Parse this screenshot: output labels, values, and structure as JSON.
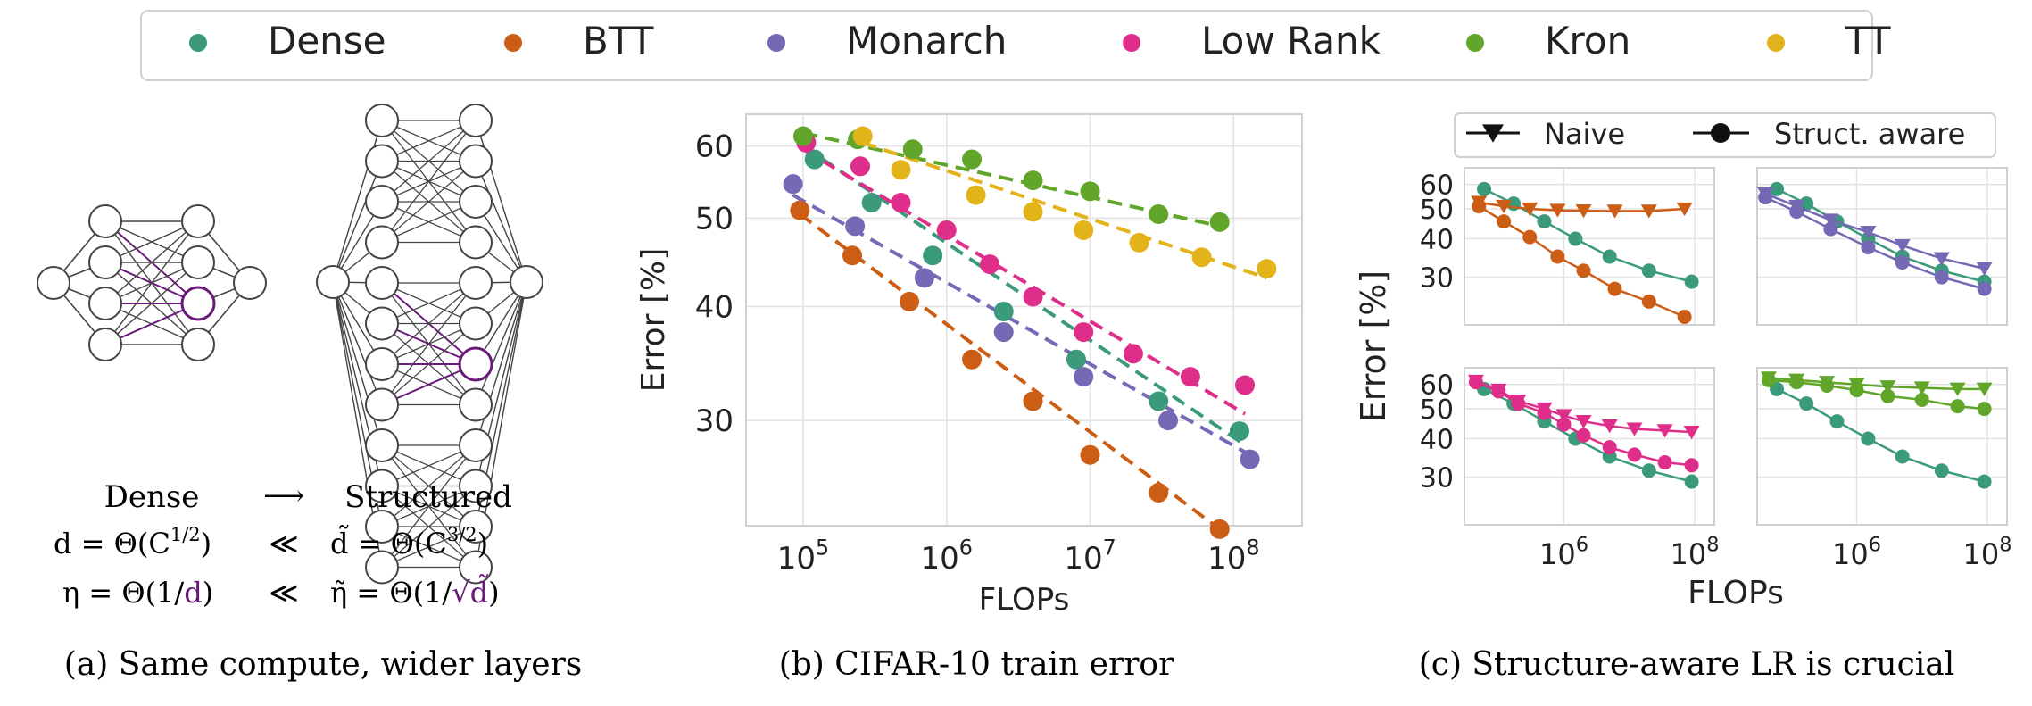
{
  "legend_top": {
    "items": [
      {
        "label": "Dense",
        "color": "#3a9a7b"
      },
      {
        "label": "BTT",
        "color": "#cc5d15"
      },
      {
        "label": "Monarch",
        "color": "#7569b6"
      },
      {
        "label": "Low Rank",
        "color": "#df2e8a"
      },
      {
        "label": "Kron",
        "color": "#61a62b"
      },
      {
        "label": "TT",
        "color": "#e3b31a"
      }
    ]
  },
  "panel_a": {
    "dense_label": "Dense",
    "arrow": "⟶",
    "structured_label": "Structured",
    "eq1_left": "d = Θ(C",
    "eq1_left_sup": "1/2",
    "eq1_left_end": ")",
    "eq1_mid": "≪",
    "eq1_right": "d̃ = Θ(C",
    "eq1_right_sup": "3/2",
    "eq1_right_end": ")",
    "eq2_left_a": "η = Θ(1/",
    "eq2_left_d": "d",
    "eq2_left_end": ")",
    "eq2_mid": "≪",
    "eq2_right_a": "η̃ = Θ(1/",
    "eq2_right_root": "√d̃",
    "eq2_right_end": ")",
    "caption": "(a) Same compute, wider layers",
    "highlight_color": "#6a1b7a"
  },
  "panel_b": {
    "caption": "(b) CIFAR-10 train error"
  },
  "panel_c": {
    "caption": "(c) Structure-aware LR is crucial",
    "legend": [
      {
        "label": "Naive",
        "marker": "triangle-down"
      },
      {
        "label": "Struct. aware",
        "marker": "circle"
      }
    ]
  },
  "chart_data": [
    {
      "type": "scatter",
      "xlabel": "FLOPs",
      "ylabel": "Error [%]",
      "xscale": "log",
      "yscale": "log",
      "xlim": [
        40000,
        300000000
      ],
      "ylim": [
        23,
        65
      ],
      "xticks": [
        {
          "v": 100000,
          "b": "10",
          "e": "5"
        },
        {
          "v": 1000000,
          "b": "10",
          "e": "6"
        },
        {
          "v": 10000000,
          "b": "10",
          "e": "7"
        },
        {
          "v": 100000000,
          "b": "10",
          "e": "8"
        }
      ],
      "yticks": [
        30,
        40,
        50,
        60
      ],
      "grid": true,
      "fit_lines": "dashed",
      "series": [
        {
          "name": "Dense",
          "color": "#3a9a7b",
          "points": [
            [
              120000,
              58
            ],
            [
              300000,
              52
            ],
            [
              800000,
              45.5
            ],
            [
              2500000,
              39.5
            ],
            [
              8000000,
              35
            ],
            [
              30000000,
              31.5
            ],
            [
              110000000,
              29.2
            ]
          ],
          "fit": [
            [
              100000,
              60
            ],
            [
              120000000,
              28.2
            ]
          ]
        },
        {
          "name": "BTT",
          "color": "#cc5d15",
          "points": [
            [
              95000,
              51
            ],
            [
              220000,
              45.5
            ],
            [
              550000,
              40.5
            ],
            [
              1500000,
              35
            ],
            [
              4000000,
              31.5
            ],
            [
              10000000,
              27.5
            ],
            [
              30000000,
              25
            ],
            [
              80000000,
              22.8
            ]
          ],
          "fit": [
            [
              95000,
              50.5
            ],
            [
              80000000,
              22.8
            ]
          ]
        },
        {
          "name": "Monarch",
          "color": "#7569b6",
          "points": [
            [
              85000,
              54.5
            ],
            [
              230000,
              49
            ],
            [
              700000,
              43
            ],
            [
              2500000,
              37.5
            ],
            [
              9000000,
              33.5
            ],
            [
              35000000,
              30
            ],
            [
              130000000,
              27.2
            ]
          ],
          "fit": [
            [
              85000,
              53
            ],
            [
              130000000,
              27.5
            ]
          ]
        },
        {
          "name": "Low Rank",
          "color": "#df2e8a",
          "points": [
            [
              105000,
              60.5
            ],
            [
              250000,
              57
            ],
            [
              480000,
              52
            ],
            [
              1000000,
              48.5
            ],
            [
              2000000,
              44.5
            ],
            [
              4000000,
              41
            ],
            [
              9000000,
              37.5
            ],
            [
              20000000,
              35.5
            ],
            [
              50000000,
              33.5
            ],
            [
              120000000,
              32.8
            ]
          ],
          "fit": [
            [
              100000,
              59.5
            ],
            [
              120000000,
              30.5
            ]
          ]
        },
        {
          "name": "Kron",
          "color": "#61a62b",
          "points": [
            [
              100000,
              61.5
            ],
            [
              240000,
              61
            ],
            [
              580000,
              59.5
            ],
            [
              1500000,
              58
            ],
            [
              4000000,
              55
            ],
            [
              10000000,
              53.5
            ],
            [
              30000000,
              50.5
            ],
            [
              80000000,
              49.5
            ]
          ],
          "fit": [
            [
              100000,
              62
            ],
            [
              80000000,
              49
            ]
          ]
        },
        {
          "name": "TT",
          "color": "#e3b31a",
          "points": [
            [
              260000,
              61.5
            ],
            [
              480000,
              56.5
            ],
            [
              1600000,
              53
            ],
            [
              4000000,
              50.8
            ],
            [
              9000000,
              48.5
            ],
            [
              22000000,
              47
            ],
            [
              60000000,
              45.3
            ],
            [
              170000000,
              44
            ]
          ],
          "fit": [
            [
              260000,
              60.5
            ],
            [
              170000000,
              43
            ]
          ]
        }
      ]
    },
    {
      "type": "line",
      "panel": "top-left",
      "xscale": "log",
      "yscale": "log",
      "xlim": [
        30000,
        200000000
      ],
      "ylim": [
        21,
        68
      ],
      "series": [
        {
          "name": "Dense",
          "marker": "circle",
          "color": "#3a9a7b",
          "points": [
            [
              60000,
              58
            ],
            [
              170000,
              52
            ],
            [
              500000,
              45.5
            ],
            [
              1500000,
              40
            ],
            [
              5000000,
              35
            ],
            [
              20000000,
              31.5
            ],
            [
              90000000,
              29
            ]
          ]
        },
        {
          "name": "BTT",
          "marker": "circle",
          "color": "#cc5d15",
          "points": [
            [
              50000,
              51
            ],
            [
              120000,
              45.5
            ],
            [
              300000,
              40.5
            ],
            [
              800000,
              35
            ],
            [
              2000000,
              31.5
            ],
            [
              6000000,
              27.5
            ],
            [
              20000000,
              25
            ],
            [
              70000000,
              22.3
            ]
          ]
        },
        {
          "name": "BTT",
          "marker": "triangle-down",
          "color": "#cc5d15",
          "points": [
            [
              50000,
              52.5
            ],
            [
              120000,
              51
            ],
            [
              300000,
              50
            ],
            [
              800000,
              49.5
            ],
            [
              2000000,
              49.3
            ],
            [
              6000000,
              49.2
            ],
            [
              20000000,
              49.2
            ],
            [
              70000000,
              50
            ]
          ]
        }
      ]
    },
    {
      "type": "line",
      "panel": "top-right",
      "xscale": "log",
      "yscale": "log",
      "xlim": [
        30000,
        200000000
      ],
      "ylim": [
        21,
        68
      ],
      "series": [
        {
          "name": "Dense",
          "marker": "circle",
          "color": "#3a9a7b",
          "points": [
            [
              60000,
              58
            ],
            [
              170000,
              52
            ],
            [
              500000,
              45.5
            ],
            [
              1500000,
              40
            ],
            [
              5000000,
              35
            ],
            [
              20000000,
              31.5
            ],
            [
              90000000,
              29
            ]
          ]
        },
        {
          "name": "Monarch",
          "marker": "circle",
          "color": "#7569b6",
          "points": [
            [
              40000,
              54.5
            ],
            [
              120000,
              49
            ],
            [
              400000,
              43
            ],
            [
              1500000,
              37.5
            ],
            [
              5000000,
              33.5
            ],
            [
              20000000,
              30
            ],
            [
              90000000,
              27.5
            ]
          ]
        },
        {
          "name": "Monarch",
          "marker": "triangle-down",
          "color": "#7569b6",
          "points": [
            [
              40000,
              56
            ],
            [
              120000,
              51
            ],
            [
              400000,
              46
            ],
            [
              1500000,
              42
            ],
            [
              5000000,
              38
            ],
            [
              20000000,
              34.5
            ],
            [
              90000000,
              32
            ]
          ]
        }
      ]
    },
    {
      "type": "line",
      "panel": "bottom-left",
      "xscale": "log",
      "yscale": "log",
      "xlim": [
        30000,
        200000000
      ],
      "ylim": [
        21,
        68
      ],
      "series": [
        {
          "name": "Dense",
          "marker": "circle",
          "color": "#3a9a7b",
          "points": [
            [
              60000,
              58
            ],
            [
              170000,
              52
            ],
            [
              500000,
              45.5
            ],
            [
              1500000,
              40
            ],
            [
              5000000,
              35
            ],
            [
              20000000,
              31.5
            ],
            [
              90000000,
              29
            ]
          ]
        },
        {
          "name": "Low Rank",
          "marker": "circle",
          "color": "#df2e8a",
          "points": [
            [
              45000,
              61
            ],
            [
              100000,
              57
            ],
            [
              200000,
              52
            ],
            [
              500000,
              48.5
            ],
            [
              1000000,
              44.5
            ],
            [
              2000000,
              41
            ],
            [
              5000000,
              37.5
            ],
            [
              12000000,
              35.5
            ],
            [
              35000000,
              33.5
            ],
            [
              90000000,
              32.8
            ]
          ]
        },
        {
          "name": "Low Rank",
          "marker": "triangle-down",
          "color": "#df2e8a",
          "points": [
            [
              45000,
              61.5
            ],
            [
              100000,
              57.5
            ],
            [
              200000,
              53
            ],
            [
              500000,
              50
            ],
            [
              1000000,
              47.5
            ],
            [
              2000000,
              45.5
            ],
            [
              5000000,
              44
            ],
            [
              12000000,
              43
            ],
            [
              35000000,
              42.5
            ],
            [
              90000000,
              42
            ]
          ]
        }
      ]
    },
    {
      "type": "line",
      "panel": "bottom-right",
      "xscale": "log",
      "yscale": "log",
      "xlim": [
        30000,
        200000000
      ],
      "ylim": [
        21,
        68
      ],
      "series": [
        {
          "name": "Dense",
          "marker": "circle",
          "color": "#3a9a7b",
          "points": [
            [
              60000,
              58
            ],
            [
              170000,
              52
            ],
            [
              500000,
              45.5
            ],
            [
              1500000,
              40
            ],
            [
              5000000,
              35
            ],
            [
              20000000,
              31.5
            ],
            [
              90000000,
              29
            ]
          ]
        },
        {
          "name": "Kron",
          "marker": "circle",
          "color": "#61a62b",
          "points": [
            [
              45000,
              62
            ],
            [
              120000,
              61
            ],
            [
              350000,
              59.5
            ],
            [
              1000000,
              57.5
            ],
            [
              3000000,
              55
            ],
            [
              10000000,
              53.5
            ],
            [
              35000000,
              51
            ],
            [
              90000000,
              50
            ]
          ]
        },
        {
          "name": "Kron",
          "marker": "triangle-down",
          "color": "#61a62b",
          "points": [
            [
              45000,
              63
            ],
            [
              120000,
              62
            ],
            [
              350000,
              61
            ],
            [
              1000000,
              60
            ],
            [
              3000000,
              59
            ],
            [
              10000000,
              58.5
            ],
            [
              35000000,
              58
            ],
            [
              90000000,
              58
            ]
          ]
        }
      ]
    }
  ],
  "panel_c_axes": {
    "ylabel": "Error [%]",
    "xlabel": "FLOPs",
    "yticks": [
      30,
      40,
      50,
      60
    ],
    "xticks": [
      {
        "v": 1000000,
        "b": "10",
        "e": "6"
      },
      {
        "v": 100000000,
        "b": "10",
        "e": "8"
      }
    ]
  }
}
